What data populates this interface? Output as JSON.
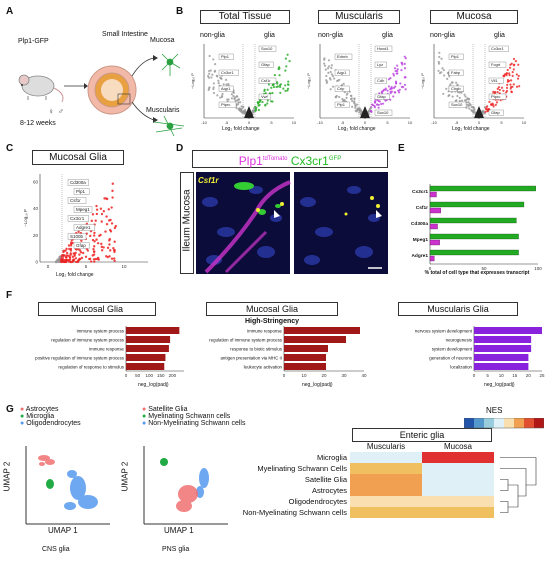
{
  "panels": [
    "A",
    "B",
    "C",
    "D",
    "E",
    "F",
    "G"
  ],
  "panelA": {
    "mouse": "Plp1-GFP",
    "organ": "Small Intestine",
    "mucosa": "Mucosa",
    "muscularis": "Muscularis",
    "age": "8-12 weeks"
  },
  "panelB": {
    "titles": [
      "Total Tissue",
      "Muscularis",
      "Mucosa"
    ],
    "nonglia": "non-glia",
    "glia": "glia",
    "xlabel": "Log₂ fold change",
    "ylabel": "−Log₁₀ P",
    "xticks": [
      "-10",
      "-5",
      "0",
      "5",
      "10"
    ],
    "genes_total": [
      "Sox10",
      "Plp1",
      "Gfap",
      "Cx3cr1",
      "Csf1r",
      "Aqp1",
      "Vwf",
      "Ptprc"
    ],
    "genes_muscularis": [
      "Hoxd1",
      "Ednrb",
      "Lyz",
      "Aqp1",
      "Cdh",
      "Crip",
      "Gfap",
      "Plp1",
      "Sox10"
    ],
    "genes_mucosa": [
      "Cx3cr1",
      "Plp1",
      "Fcgrt",
      "Fabp",
      "Vil1",
      "Chgb",
      "Ptprc",
      "Sox10",
      "Gfap"
    ]
  },
  "panelC": {
    "title": "Mucosal Glia",
    "ylabel": "−Log₁₀ P",
    "xlabel": "Log₂ fold change",
    "yticks": [
      "0",
      "20",
      "40",
      "60"
    ],
    "xticks": [
      "0",
      "5",
      "10"
    ],
    "genes": [
      "Cd300a",
      "Plp1",
      "Csf1r",
      "Mpeg1",
      "Cx3cr1",
      "Adgre1",
      "S100b",
      "Gfap"
    ]
  },
  "panelD": {
    "title_a": "Plp1",
    "title_a_sup": "tdTomato",
    "title_b": "Cx3cr1",
    "title_b_sup": "GFP",
    "side": "Ileum Mucosa",
    "stain": "Csf1r"
  },
  "panelE": {
    "xlabel": "% total of cell type that expresses transcript",
    "xticks": [
      "0",
      "50",
      "100"
    ],
    "colors": {
      "green": "#22aa22",
      "magenta": "#cc33cc"
    }
  },
  "chart_data": [
    {
      "type": "bar",
      "categories": [
        "Cx3cr1",
        "Csf1r",
        "Cd300a",
        "Mpeg1",
        "Adgre1"
      ],
      "series": [
        {
          "values": [
            98,
            87,
            80,
            82,
            82
          ]
        },
        {
          "values": [
            6,
            10,
            7,
            9,
            4
          ]
        }
      ],
      "xlabel": "% total of cell type that expresses transcript",
      "xlim": [
        0,
        100
      ]
    },
    {
      "type": "bar",
      "title": "Mucosal Glia",
      "categories": [
        "immune system process",
        "regulation of immune system process",
        "immune response",
        "positive regulation of immune system process",
        "regulation of response to stimulus"
      ],
      "values": [
        230,
        190,
        185,
        170,
        165
      ],
      "xlabel": "neg_log(padj)",
      "xlim": [
        0,
        250
      ]
    },
    {
      "type": "bar",
      "title": "Mucosal Glia",
      "subtitle": "High-Stringency",
      "categories": [
        "immune response",
        "regulation of immune system process",
        "response to biotic stimulus",
        "antigen presentation via MHC II",
        "leukocyte activation"
      ],
      "values": [
        38,
        31,
        22,
        21,
        21
      ],
      "xlabel": "neg_log(padj)",
      "xlim": [
        0,
        40
      ]
    },
    {
      "type": "bar",
      "title": "Muscularis Glia",
      "categories": [
        "nervous system development",
        "neurogenesis",
        "system development",
        "generation of neurons",
        "localization"
      ],
      "values": [
        25,
        21,
        21,
        20,
        20
      ],
      "xlabel": "neg_log(padj)",
      "xlim": [
        0,
        25
      ]
    },
    {
      "type": "heatmap",
      "title": "Enteric glia",
      "columns": [
        "Muscularis",
        "Mucosa"
      ],
      "rows": [
        "Microglia",
        "Myelinating Schwann Cells",
        "Satellite Glia",
        "Astrocytes",
        "Oligodendrocytes",
        "Non-Myelinating Schwann cells"
      ],
      "colors": [
        [
          "#dff0f7",
          "#e03030"
        ],
        [
          "#f0c060",
          "#dff0f7"
        ],
        [
          "#f0a050",
          "#dff0f7"
        ],
        [
          "#f0a050",
          "#dff0f7"
        ],
        [
          "#fae0b0",
          "#fae0b0"
        ],
        [
          "#f0c060",
          "#f0c060"
        ]
      ],
      "legend": "NES"
    }
  ],
  "panelF": {
    "titles": [
      "Mucosal Glia",
      "Mucosal Glia",
      "Muscularis Glia"
    ],
    "subtitle": "High-Stringency",
    "xlabel": "neg_log(padj)",
    "xticks1": [
      "0",
      "50",
      "100",
      "150",
      "200"
    ],
    "xticks2": [
      "0",
      "10",
      "20",
      "30",
      "40"
    ],
    "xticks3": [
      "0",
      "5",
      "10",
      "15",
      "20",
      "25"
    ],
    "colors": {
      "red": "#a01818",
      "purple": "#8822dd"
    }
  },
  "panelG": {
    "cns_legend": [
      "Astrocytes",
      "Microglia",
      "Oligodendrocytes"
    ],
    "cns_colors": [
      "#f07070",
      "#22aa44",
      "#5599ee"
    ],
    "pns_legend": [
      "Satellite Glia",
      "Myelinating Schwann cells",
      "Non-Myelinating Schwann cells"
    ],
    "pns_colors": [
      "#f07070",
      "#22aa44",
      "#5599ee"
    ],
    "umap1": "UMAP 1",
    "umap2": "UMAP 2",
    "cns_caption": "CNS glia",
    "pns_caption": "PNS glia",
    "heatmap_title": "Enteric glia",
    "nes": "NES",
    "nes_colors": [
      "#2255aa",
      "#5599cc",
      "#99ccdd",
      "#dff0f7",
      "#fae0b0",
      "#f0a050",
      "#e05030",
      "#b01818"
    ]
  }
}
